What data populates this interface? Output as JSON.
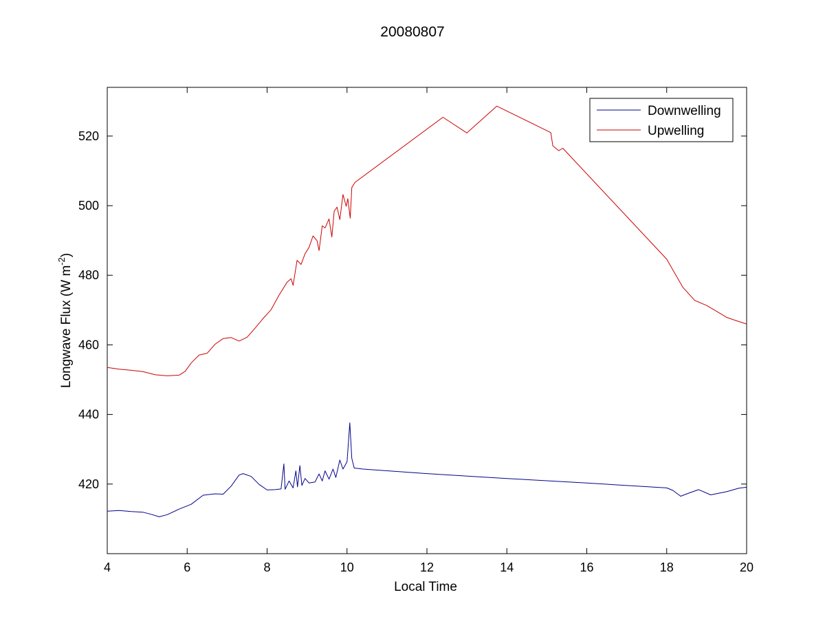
{
  "chart_data": {
    "type": "line",
    "title": "20080807",
    "xlabel": "Local Time",
    "ylabel": {
      "base": "Longwave Flux (W m",
      "sup": "-2",
      "close": ")"
    },
    "xlim": [
      4,
      20
    ],
    "ylim": [
      400,
      534
    ],
    "xticks": [
      4,
      6,
      8,
      10,
      12,
      14,
      16,
      18,
      20
    ],
    "yticks": [
      420,
      440,
      460,
      480,
      500,
      520
    ],
    "grid": false,
    "legend_position": "top-right",
    "colors": {
      "downwelling": "#00008b",
      "upwelling": "#cc0000"
    },
    "series": [
      {
        "name": "Downwelling",
        "color": "#00008b",
        "points": [
          [
            4.0,
            412.2
          ],
          [
            4.3,
            412.4
          ],
          [
            4.6,
            412.1
          ],
          [
            4.9,
            411.9
          ],
          [
            5.1,
            411.3
          ],
          [
            5.3,
            410.6
          ],
          [
            5.5,
            411.2
          ],
          [
            5.8,
            412.8
          ],
          [
            6.1,
            414.2
          ],
          [
            6.4,
            416.8
          ],
          [
            6.7,
            417.2
          ],
          [
            6.9,
            417.1
          ],
          [
            7.1,
            419.4
          ],
          [
            7.3,
            422.6
          ],
          [
            7.4,
            423.0
          ],
          [
            7.6,
            422.2
          ],
          [
            7.8,
            419.9
          ],
          [
            8.0,
            418.3
          ],
          [
            8.2,
            418.4
          ],
          [
            8.35,
            418.6
          ],
          [
            8.42,
            425.8
          ],
          [
            8.45,
            418.5
          ],
          [
            8.55,
            420.9
          ],
          [
            8.65,
            418.9
          ],
          [
            8.72,
            423.8
          ],
          [
            8.76,
            419.2
          ],
          [
            8.82,
            425.3
          ],
          [
            8.87,
            419.6
          ],
          [
            8.95,
            421.6
          ],
          [
            9.05,
            420.3
          ],
          [
            9.2,
            420.6
          ],
          [
            9.3,
            422.9
          ],
          [
            9.38,
            420.9
          ],
          [
            9.45,
            423.8
          ],
          [
            9.55,
            421.4
          ],
          [
            9.65,
            424.3
          ],
          [
            9.72,
            421.9
          ],
          [
            9.82,
            426.9
          ],
          [
            9.9,
            424.3
          ],
          [
            10.0,
            426.4
          ],
          [
            10.07,
            437.6
          ],
          [
            10.12,
            427.4
          ],
          [
            10.18,
            424.6
          ],
          [
            10.4,
            424.3
          ],
          [
            12.0,
            423.0
          ],
          [
            14.0,
            421.6
          ],
          [
            16.0,
            420.3
          ],
          [
            18.0,
            418.9
          ],
          [
            18.15,
            418.2
          ],
          [
            18.35,
            416.5
          ],
          [
            18.55,
            417.4
          ],
          [
            18.8,
            418.4
          ],
          [
            19.1,
            416.9
          ],
          [
            19.5,
            417.8
          ],
          [
            19.8,
            418.8
          ],
          [
            20.0,
            419.1
          ]
        ]
      },
      {
        "name": "Upwelling",
        "color": "#cc0000",
        "points": [
          [
            4.0,
            453.5
          ],
          [
            4.3,
            453.0
          ],
          [
            4.6,
            452.7
          ],
          [
            4.9,
            452.3
          ],
          [
            5.2,
            451.4
          ],
          [
            5.5,
            451.1
          ],
          [
            5.8,
            451.3
          ],
          [
            5.95,
            452.4
          ],
          [
            6.1,
            454.8
          ],
          [
            6.3,
            457.1
          ],
          [
            6.5,
            457.6
          ],
          [
            6.7,
            460.2
          ],
          [
            6.9,
            461.8
          ],
          [
            7.1,
            462.1
          ],
          [
            7.3,
            461.1
          ],
          [
            7.5,
            462.2
          ],
          [
            7.7,
            464.8
          ],
          [
            7.9,
            467.6
          ],
          [
            8.1,
            470.1
          ],
          [
            8.3,
            474.3
          ],
          [
            8.5,
            478.0
          ],
          [
            8.6,
            479.0
          ],
          [
            8.65,
            477.1
          ],
          [
            8.75,
            484.3
          ],
          [
            8.85,
            483.1
          ],
          [
            8.95,
            486.2
          ],
          [
            9.05,
            488.0
          ],
          [
            9.15,
            491.3
          ],
          [
            9.25,
            489.9
          ],
          [
            9.3,
            487.1
          ],
          [
            9.38,
            494.2
          ],
          [
            9.45,
            493.6
          ],
          [
            9.55,
            496.2
          ],
          [
            9.62,
            491.0
          ],
          [
            9.68,
            498.4
          ],
          [
            9.75,
            499.6
          ],
          [
            9.82,
            496.0
          ],
          [
            9.9,
            503.2
          ],
          [
            9.98,
            499.8
          ],
          [
            10.02,
            502.0
          ],
          [
            10.08,
            496.4
          ],
          [
            10.12,
            505.2
          ],
          [
            10.2,
            506.7
          ],
          [
            12.4,
            525.4
          ],
          [
            13.0,
            520.9
          ],
          [
            13.75,
            528.6
          ],
          [
            15.1,
            521.0
          ],
          [
            15.15,
            517.2
          ],
          [
            15.3,
            515.8
          ],
          [
            15.4,
            516.5
          ],
          [
            18.0,
            484.6
          ],
          [
            18.4,
            476.6
          ],
          [
            18.7,
            472.8
          ],
          [
            19.0,
            471.3
          ],
          [
            19.3,
            469.3
          ],
          [
            19.5,
            467.9
          ],
          [
            19.7,
            467.1
          ],
          [
            20.0,
            466.0
          ]
        ]
      }
    ]
  }
}
